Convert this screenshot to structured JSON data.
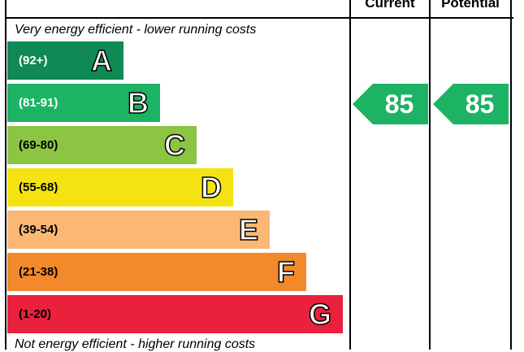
{
  "headers": {
    "current": "Current",
    "potential": "Potential"
  },
  "captions": {
    "top": "Very energy efficient - lower running costs",
    "bottom": "Not energy efficient - higher running costs"
  },
  "bands": [
    {
      "range": "(92+)",
      "letter": "A",
      "color": "#0f8a55",
      "text_color": "#ffffff"
    },
    {
      "range": "(81-91)",
      "letter": "B",
      "color": "#1db364",
      "text_color": "#ffffff"
    },
    {
      "range": "(69-80)",
      "letter": "C",
      "color": "#8cc443",
      "text_color": "#000000"
    },
    {
      "range": "(55-68)",
      "letter": "D",
      "color": "#f4e311",
      "text_color": "#000000"
    },
    {
      "range": "(39-54)",
      "letter": "E",
      "color": "#fab874",
      "text_color": "#000000"
    },
    {
      "range": "(21-38)",
      "letter": "F",
      "color": "#f2892a",
      "text_color": "#000000"
    },
    {
      "range": "(1-20)",
      "letter": "G",
      "color": "#e9213d",
      "text_color": "#000000"
    }
  ],
  "ratings": {
    "current": {
      "value": "85",
      "color": "#1db364"
    },
    "potential": {
      "value": "85",
      "color": "#1db364"
    }
  }
}
